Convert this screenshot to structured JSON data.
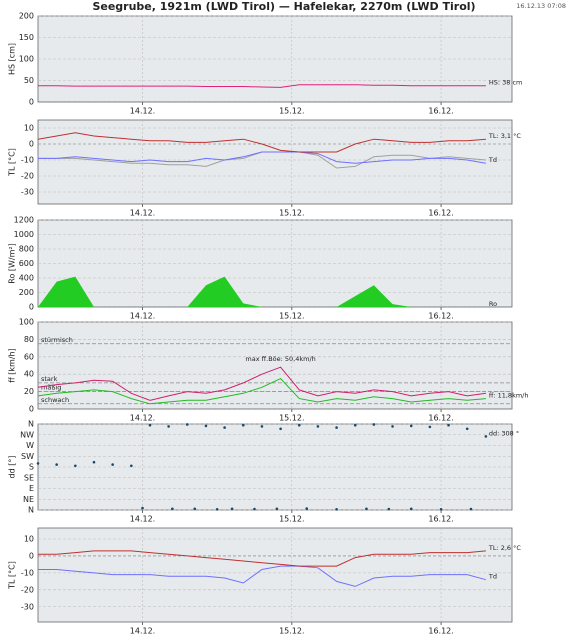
{
  "header": {
    "title": "Seegrube, 1921m (LWD Tirol) — Hafelekar, 2270m (LWD Tirol)",
    "timestamp": "16.12.13 07:08"
  },
  "chart_data": [
    {
      "type": "line",
      "y_label": "HS [cm]",
      "label_color": "#e0207a",
      "x": [
        13.3,
        13.425,
        13.55,
        13.675,
        13.8,
        13.925,
        14.05,
        14.175,
        14.3,
        14.425,
        14.55,
        14.675,
        14.8,
        14.925,
        15.05,
        15.175,
        15.3,
        15.425,
        15.55,
        15.675,
        15.8,
        15.925,
        16.05,
        16.175,
        16.3
      ],
      "xlim": [
        13.3,
        16.475
      ],
      "xticks": [
        {
          "value": 14,
          "label": "14.12."
        },
        {
          "value": 15,
          "label": "15.12."
        },
        {
          "value": 16,
          "label": "16.12."
        }
      ],
      "ylim": [
        0,
        200
      ],
      "yticks": [
        0,
        50,
        100,
        150,
        200
      ],
      "series": [
        {
          "name": "HS: 38 cm",
          "color": "#e0207a",
          "values": [
            38,
            38,
            37,
            37,
            37,
            37,
            37,
            37,
            37,
            36,
            36,
            36,
            35,
            34,
            40,
            40,
            40,
            40,
            39,
            39,
            38,
            38,
            38,
            38,
            38
          ]
        }
      ]
    },
    {
      "type": "line",
      "y_label": "TL [°C]",
      "label_color": "#c03030",
      "x": [
        13.3,
        13.425,
        13.55,
        13.675,
        13.8,
        13.925,
        14.05,
        14.175,
        14.3,
        14.425,
        14.55,
        14.675,
        14.8,
        14.925,
        15.05,
        15.175,
        15.3,
        15.425,
        15.55,
        15.675,
        15.8,
        15.925,
        16.05,
        16.175,
        16.3
      ],
      "xlim": [
        13.3,
        16.475
      ],
      "xticks": [
        {
          "value": 14,
          "label": "14.12."
        },
        {
          "value": 15,
          "label": "15.12."
        },
        {
          "value": 16,
          "label": "16.12."
        }
      ],
      "ylim": [
        -37.5,
        15
      ],
      "yticks": [
        -30,
        -20,
        -10,
        0,
        10
      ],
      "series": [
        {
          "color": "#a0a0a0",
          "values": [
            -9,
            -9,
            -9,
            -10,
            -11,
            -12,
            -12,
            -13,
            -13,
            -14,
            -10,
            -9,
            -5,
            -5,
            -5,
            -7,
            -15,
            -14,
            -8,
            -7,
            -7,
            -9,
            -8,
            -9,
            -10
          ]
        },
        {
          "name": "Td",
          "color": "#7070ff",
          "values": [
            -9,
            -9,
            -8,
            -9,
            -10,
            -11,
            -10,
            -11,
            -11,
            -9,
            -10,
            -8,
            -5,
            -5,
            -5,
            -6,
            -11,
            -12,
            -11,
            -10,
            -10,
            -9,
            -9,
            -10,
            -12
          ]
        },
        {
          "name": "TL: 3,1 °C",
          "color": "#c03030",
          "values": [
            3,
            5,
            7,
            5,
            4,
            3,
            2,
            2,
            1,
            1,
            2,
            3,
            0,
            -4,
            -5,
            -5,
            -5,
            0,
            3,
            2,
            1,
            1,
            2,
            2,
            3
          ]
        }
      ]
    },
    {
      "type": "area",
      "y_label": "Ro [W/m²]",
      "label_color": "#22aa22",
      "x": [
        13.3,
        13.425,
        13.55,
        13.675,
        13.8,
        13.925,
        14.05,
        14.175,
        14.3,
        14.425,
        14.55,
        14.675,
        14.8,
        14.925,
        15.05,
        15.175,
        15.3,
        15.425,
        15.55,
        15.675,
        15.8,
        15.925,
        16.05,
        16.175,
        16.3
      ],
      "xlim": [
        13.3,
        16.475
      ],
      "xticks": [
        {
          "value": 14,
          "label": "14.12."
        },
        {
          "value": 15,
          "label": "15.12."
        },
        {
          "value": 16,
          "label": "16.12."
        }
      ],
      "ylim": [
        0,
        1200
      ],
      "yticks": [
        0,
        200,
        400,
        600,
        800,
        1000,
        1200
      ],
      "series": [
        {
          "name": "Ro",
          "color": "#22cc22",
          "values": [
            0,
            350,
            420,
            0,
            0,
            0,
            0,
            0,
            0,
            300,
            420,
            50,
            0,
            0,
            0,
            0,
            0,
            150,
            300,
            40,
            0,
            0,
            0,
            0,
            0
          ]
        }
      ]
    },
    {
      "type": "line",
      "y_label": "ff [km/h]",
      "label_color": "#d0206a",
      "x": [
        13.3,
        13.425,
        13.55,
        13.675,
        13.8,
        13.925,
        14.05,
        14.175,
        14.3,
        14.425,
        14.55,
        14.675,
        14.8,
        14.925,
        15.05,
        15.175,
        15.3,
        15.425,
        15.55,
        15.675,
        15.8,
        15.925,
        16.05,
        16.175,
        16.3
      ],
      "xlim": [
        13.3,
        16.475
      ],
      "xticks": [
        {
          "value": 14,
          "label": "14.12."
        },
        {
          "value": 15,
          "label": "15.12."
        },
        {
          "value": 16,
          "label": "16.12."
        }
      ],
      "ylim": [
        0,
        100
      ],
      "yticks": [
        0,
        20,
        40,
        60,
        80,
        100
      ],
      "ref_lines": [
        {
          "value": 75,
          "label": "stürmisch"
        },
        {
          "value": 30,
          "label": "stark"
        },
        {
          "value": 20,
          "label": "mäßig"
        },
        {
          "value": 6,
          "label": "schwach"
        }
      ],
      "annotations": [
        {
          "text": "max ff.Böe: 50,4km/h"
        }
      ],
      "series": [
        {
          "color": "#d0206a",
          "values": [
            25,
            28,
            30,
            33,
            32,
            18,
            10,
            15,
            20,
            18,
            22,
            30,
            40,
            48,
            22,
            15,
            20,
            18,
            22,
            20,
            15,
            18,
            20,
            15,
            18
          ]
        },
        {
          "name": "ff: 11,8km/h",
          "color": "#22bb22",
          "values": [
            15,
            18,
            20,
            22,
            20,
            12,
            6,
            8,
            10,
            10,
            14,
            18,
            25,
            35,
            12,
            8,
            12,
            10,
            14,
            12,
            8,
            10,
            12,
            10,
            12
          ]
        }
      ]
    },
    {
      "type": "scatter",
      "y_label": "dd [°]",
      "label_color": "#1a4a6a",
      "xlim": [
        13.3,
        16.475
      ],
      "xticks": [
        {
          "value": 14,
          "label": "14.12."
        },
        {
          "value": 15,
          "label": "15.12."
        },
        {
          "value": 16,
          "label": "16.12."
        }
      ],
      "ylim": [
        0,
        360
      ],
      "yticks": [
        {
          "value": 0,
          "label": "N"
        },
        {
          "value": 45,
          "label": "NE"
        },
        {
          "value": 90,
          "label": "E"
        },
        {
          "value": 135,
          "label": "SE"
        },
        {
          "value": 180,
          "label": "S"
        },
        {
          "value": 225,
          "label": "SW"
        },
        {
          "value": 270,
          "label": "W"
        },
        {
          "value": 315,
          "label": "NW"
        },
        {
          "value": 360,
          "label": "N"
        }
      ],
      "series": [
        {
          "name": "dd: 308 °",
          "color": "#1a4a6a",
          "x": [
            13.3,
            13.425,
            13.55,
            13.675,
            13.8,
            13.925,
            14.05,
            14.175,
            14.3,
            14.425,
            14.55,
            14.675,
            14.8,
            14.925,
            15.05,
            15.175,
            15.3,
            15.425,
            15.55,
            15.675,
            15.8,
            15.925,
            16.05,
            16.175,
            16.3
          ],
          "values": [
            195,
            190,
            185,
            200,
            190,
            185,
            355,
            350,
            358,
            352,
            345,
            355,
            350,
            340,
            355,
            350,
            345,
            355,
            358,
            350,
            352,
            348,
            355,
            340,
            308
          ]
        },
        {
          "color": "#1a4a6a",
          "x": [
            14.0,
            14.2,
            14.35,
            14.5,
            14.6,
            14.75,
            14.9,
            15.1,
            15.3,
            15.5,
            15.65,
            15.8,
            16.0,
            16.2
          ],
          "values": [
            8,
            5,
            5,
            3,
            5,
            4,
            5,
            6,
            3,
            5,
            4,
            5,
            3,
            4
          ]
        }
      ]
    },
    {
      "type": "line",
      "y_label": "TL [°C]",
      "label_color": "#c03030",
      "x": [
        13.3,
        13.425,
        13.55,
        13.675,
        13.8,
        13.925,
        14.05,
        14.175,
        14.3,
        14.425,
        14.55,
        14.675,
        14.8,
        14.925,
        15.05,
        15.175,
        15.3,
        15.425,
        15.55,
        15.675,
        15.8,
        15.925,
        16.05,
        16.175,
        16.3
      ],
      "xlim": [
        13.3,
        16.475
      ],
      "xticks": [
        {
          "value": 14,
          "label": "14.12."
        },
        {
          "value": 15,
          "label": "15.12."
        },
        {
          "value": 16,
          "label": "16.12."
        }
      ],
      "ylim": [
        -39,
        16.5
      ],
      "yticks": [
        -30,
        -20,
        -10,
        0,
        10
      ],
      "series": [
        {
          "name": "Td",
          "color": "#7070ff",
          "values": [
            -8,
            -8,
            -9,
            -10,
            -11,
            -11,
            -11,
            -12,
            -12,
            -12,
            -13,
            -16,
            -8,
            -6,
            -6,
            -7,
            -15,
            -18,
            -13,
            -12,
            -12,
            -11,
            -11,
            -11,
            -14
          ]
        },
        {
          "name": "TL: 2,6 °C",
          "color": "#c03030",
          "values": [
            1,
            1,
            2,
            3,
            3,
            3,
            2,
            1,
            0,
            -1,
            -2,
            -3,
            -4,
            -5,
            -6,
            -6,
            -6,
            -1,
            1,
            1,
            1,
            2,
            2,
            2,
            3
          ]
        }
      ]
    }
  ]
}
